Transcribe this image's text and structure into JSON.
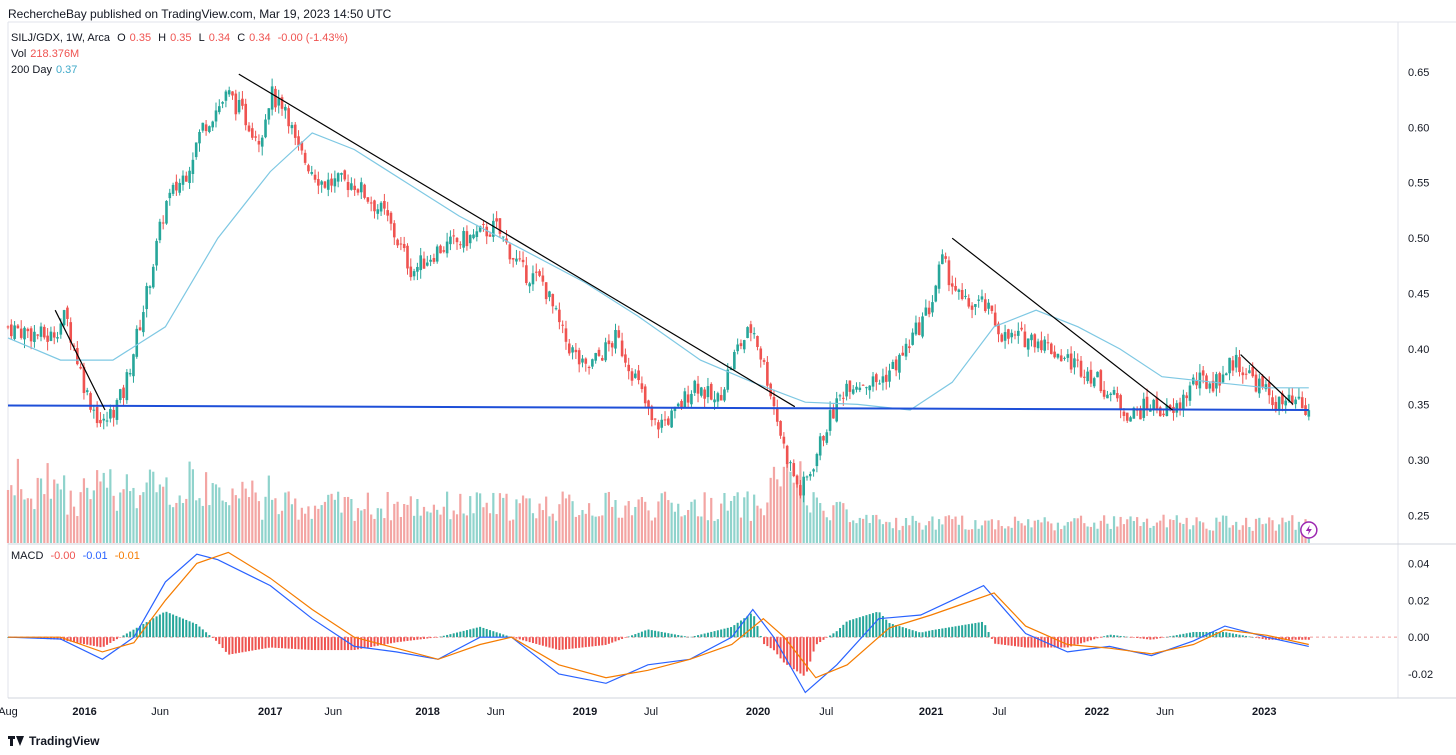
{
  "header": "RechercheBay published on TradingView.com, Mar 19, 2023 14:50 UTC",
  "legend": {
    "symbol": "SILJ/GDX, 1W, Arca",
    "open_label": "O",
    "open": "0.35",
    "high_label": "H",
    "high": "0.35",
    "low_label": "L",
    "low": "0.34",
    "close_label": "C",
    "close": "0.34",
    "change": "-0.00 (-1.43%)",
    "vol_label": "Vol",
    "vol": "218.376M",
    "ma_label": "200 Day",
    "ma": "0.37",
    "macd_label": "MACD",
    "macd_hist": "-0.00",
    "macd_line": "-0.01",
    "macd_signal": "-0.01"
  },
  "footer": {
    "brand": "TradingView"
  },
  "colors": {
    "up": "#26a69a",
    "down": "#ef5350",
    "ma": "#7ec8e3",
    "support": "#1e4fd8",
    "macd": "#2962ff",
    "signal": "#f57c00"
  },
  "chart_data": [
    {
      "type": "candlestick",
      "name": "SILJ/GDX",
      "y_ticks": [
        "0.65",
        "0.60",
        "0.55",
        "0.50",
        "0.45",
        "0.40",
        "0.35",
        "0.30",
        "0.25"
      ],
      "x_ticks": [
        "Aug",
        "2016",
        "Jun",
        "2017",
        "Jun",
        "2018",
        "Jun",
        "2019",
        "Jul",
        "2020",
        "Jul",
        "2021",
        "Jul",
        "2022",
        "Jun",
        "2023"
      ],
      "x_ticks_t": [
        0,
        0.146,
        0.29,
        0.5,
        0.62,
        0.8,
        0.93,
        1.1,
        1.226,
        1.43,
        1.56,
        1.76,
        1.89,
        2.076,
        2.206,
        2.395
      ],
      "close_path": [
        [
          0,
          0.42
        ],
        [
          0.08,
          0.41
        ],
        [
          0.11,
          0.43
        ],
        [
          0.15,
          0.36
        ],
        [
          0.18,
          0.33
        ],
        [
          0.22,
          0.36
        ],
        [
          0.26,
          0.44
        ],
        [
          0.3,
          0.53
        ],
        [
          0.34,
          0.56
        ],
        [
          0.37,
          0.6
        ],
        [
          0.42,
          0.63
        ],
        [
          0.45,
          0.61
        ],
        [
          0.48,
          0.59
        ],
        [
          0.5,
          0.63
        ],
        [
          0.53,
          0.62
        ],
        [
          0.55,
          0.58
        ],
        [
          0.6,
          0.55
        ],
        [
          0.66,
          0.55
        ],
        [
          0.72,
          0.52
        ],
        [
          0.77,
          0.47
        ],
        [
          0.82,
          0.49
        ],
        [
          0.88,
          0.5
        ],
        [
          0.93,
          0.51
        ],
        [
          0.98,
          0.47
        ],
        [
          1.02,
          0.46
        ],
        [
          1.06,
          0.41
        ],
        [
          1.1,
          0.38
        ],
        [
          1.16,
          0.41
        ],
        [
          1.2,
          0.37
        ],
        [
          1.23,
          0.33
        ],
        [
          1.27,
          0.34
        ],
        [
          1.31,
          0.37
        ],
        [
          1.35,
          0.35
        ],
        [
          1.39,
          0.4
        ],
        [
          1.42,
          0.42
        ],
        [
          1.45,
          0.37
        ],
        [
          1.48,
          0.31
        ],
        [
          1.51,
          0.27
        ],
        [
          1.53,
          0.29
        ],
        [
          1.56,
          0.33
        ],
        [
          1.6,
          0.37
        ],
        [
          1.66,
          0.37
        ],
        [
          1.7,
          0.39
        ],
        [
          1.76,
          0.44
        ],
        [
          1.78,
          0.48
        ],
        [
          1.82,
          0.44
        ],
        [
          1.86,
          0.44
        ],
        [
          1.9,
          0.41
        ],
        [
          1.96,
          0.41
        ],
        [
          2.02,
          0.39
        ],
        [
          2.06,
          0.38
        ],
        [
          2.1,
          0.36
        ],
        [
          2.14,
          0.34
        ],
        [
          2.18,
          0.35
        ],
        [
          2.22,
          0.34
        ],
        [
          2.26,
          0.37
        ],
        [
          2.3,
          0.37
        ],
        [
          2.34,
          0.39
        ],
        [
          2.38,
          0.37
        ],
        [
          2.42,
          0.35
        ],
        [
          2.46,
          0.35
        ],
        [
          2.48,
          0.34
        ]
      ],
      "ma_path": [
        [
          0,
          0.41
        ],
        [
          0.1,
          0.39
        ],
        [
          0.2,
          0.39
        ],
        [
          0.3,
          0.42
        ],
        [
          0.4,
          0.5
        ],
        [
          0.5,
          0.56
        ],
        [
          0.58,
          0.595
        ],
        [
          0.66,
          0.58
        ],
        [
          0.76,
          0.55
        ],
        [
          0.86,
          0.52
        ],
        [
          0.98,
          0.49
        ],
        [
          1.1,
          0.46
        ],
        [
          1.2,
          0.43
        ],
        [
          1.32,
          0.39
        ],
        [
          1.42,
          0.37
        ],
        [
          1.52,
          0.352
        ],
        [
          1.62,
          0.35
        ],
        [
          1.72,
          0.345
        ],
        [
          1.8,
          0.37
        ],
        [
          1.88,
          0.42
        ],
        [
          1.96,
          0.435
        ],
        [
          2.04,
          0.42
        ],
        [
          2.12,
          0.4
        ],
        [
          2.2,
          0.375
        ],
        [
          2.3,
          0.37
        ],
        [
          2.4,
          0.365
        ],
        [
          2.48,
          0.365
        ]
      ],
      "support_line": [
        [
          0,
          0.349
        ],
        [
          2.48,
          0.345
        ]
      ],
      "trend_lines": [
        [
          [
            0.09,
            0.435
          ],
          [
            0.185,
            0.345
          ]
        ],
        [
          [
            0.44,
            0.648
          ],
          [
            1.5,
            0.348
          ]
        ],
        [
          [
            1.8,
            0.5
          ],
          [
            2.22,
            0.345
          ]
        ],
        [
          [
            2.35,
            0.395
          ],
          [
            2.45,
            0.35
          ]
        ]
      ],
      "ylim": [
        0.225,
        0.695
      ],
      "xlim": [
        0,
        2.65
      ]
    },
    {
      "type": "macd",
      "y_ticks": [
        "0.04",
        "0.02",
        "0.00",
        "-0.02"
      ],
      "macd_path": [
        [
          0,
          0.0
        ],
        [
          0.1,
          -0.001
        ],
        [
          0.18,
          -0.012
        ],
        [
          0.24,
          0.0
        ],
        [
          0.3,
          0.03
        ],
        [
          0.36,
          0.045
        ],
        [
          0.4,
          0.042
        ],
        [
          0.5,
          0.028
        ],
        [
          0.58,
          0.01
        ],
        [
          0.66,
          -0.005
        ],
        [
          0.74,
          -0.008
        ],
        [
          0.82,
          -0.012
        ],
        [
          0.9,
          0.0
        ],
        [
          0.96,
          0.0
        ],
        [
          1.05,
          -0.02
        ],
        [
          1.14,
          -0.025
        ],
        [
          1.22,
          -0.015
        ],
        [
          1.3,
          -0.012
        ],
        [
          1.38,
          0.0
        ],
        [
          1.42,
          0.015
        ],
        [
          1.46,
          0.0
        ],
        [
          1.52,
          -0.03
        ],
        [
          1.58,
          -0.015
        ],
        [
          1.66,
          0.01
        ],
        [
          1.74,
          0.012
        ],
        [
          1.8,
          0.02
        ],
        [
          1.86,
          0.028
        ],
        [
          1.94,
          0.002
        ],
        [
          2.02,
          -0.008
        ],
        [
          2.1,
          -0.005
        ],
        [
          2.18,
          -0.01
        ],
        [
          2.26,
          -0.002
        ],
        [
          2.32,
          0.006
        ],
        [
          2.4,
          0.0
        ],
        [
          2.48,
          -0.005
        ]
      ],
      "signal_path": [
        [
          0,
          0.0
        ],
        [
          0.1,
          0.0
        ],
        [
          0.18,
          -0.008
        ],
        [
          0.24,
          -0.003
        ],
        [
          0.3,
          0.02
        ],
        [
          0.36,
          0.04
        ],
        [
          0.42,
          0.046
        ],
        [
          0.5,
          0.032
        ],
        [
          0.58,
          0.015
        ],
        [
          0.66,
          0.0
        ],
        [
          0.74,
          -0.006
        ],
        [
          0.82,
          -0.012
        ],
        [
          0.9,
          -0.004
        ],
        [
          0.96,
          0.0
        ],
        [
          1.05,
          -0.015
        ],
        [
          1.14,
          -0.022
        ],
        [
          1.22,
          -0.018
        ],
        [
          1.3,
          -0.012
        ],
        [
          1.38,
          -0.004
        ],
        [
          1.44,
          0.01
        ],
        [
          1.48,
          0.0
        ],
        [
          1.54,
          -0.022
        ],
        [
          1.6,
          -0.015
        ],
        [
          1.68,
          0.005
        ],
        [
          1.76,
          0.012
        ],
        [
          1.82,
          0.018
        ],
        [
          1.88,
          0.024
        ],
        [
          1.94,
          0.006
        ],
        [
          2.02,
          -0.004
        ],
        [
          2.1,
          -0.006
        ],
        [
          2.18,
          -0.009
        ],
        [
          2.26,
          -0.004
        ],
        [
          2.32,
          0.004
        ],
        [
          2.4,
          0.001
        ],
        [
          2.48,
          -0.004
        ]
      ],
      "ylim": [
        -0.033,
        0.05
      ],
      "xlim": [
        0,
        2.65
      ]
    }
  ]
}
